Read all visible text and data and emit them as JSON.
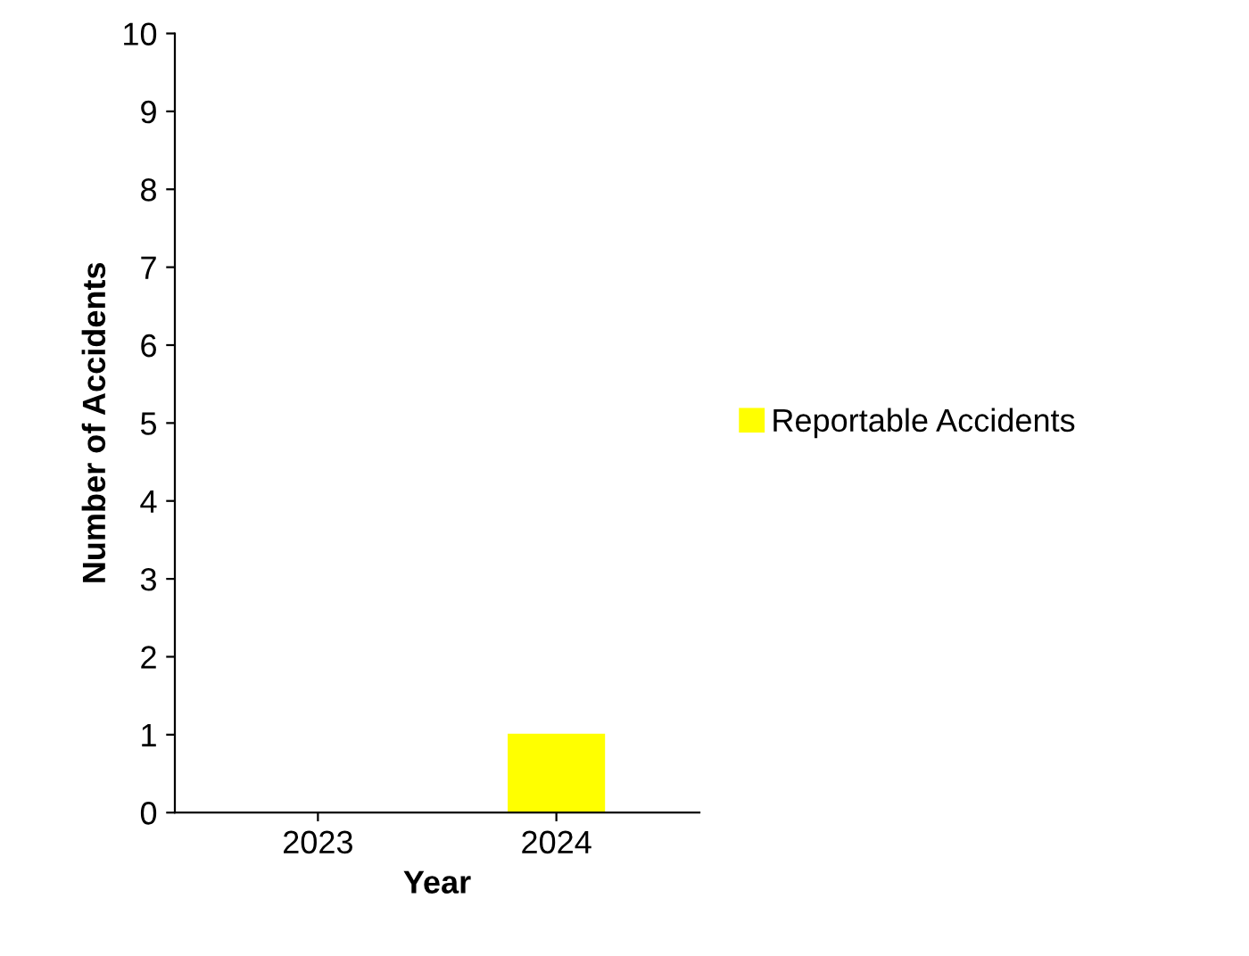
{
  "chart_data": {
    "type": "bar",
    "xlabel": "Year",
    "ylabel": "Number of Accidents",
    "categories": [
      "2023",
      "2024"
    ],
    "series": [
      {
        "name": "Reportable Accidents",
        "color": "#ffff00",
        "values": [
          0,
          1
        ]
      }
    ],
    "ylim": [
      0,
      10
    ],
    "yticks": [
      0,
      1,
      2,
      3,
      4,
      5,
      6,
      7,
      8,
      9,
      10
    ],
    "grid": false,
    "legend": "right"
  }
}
